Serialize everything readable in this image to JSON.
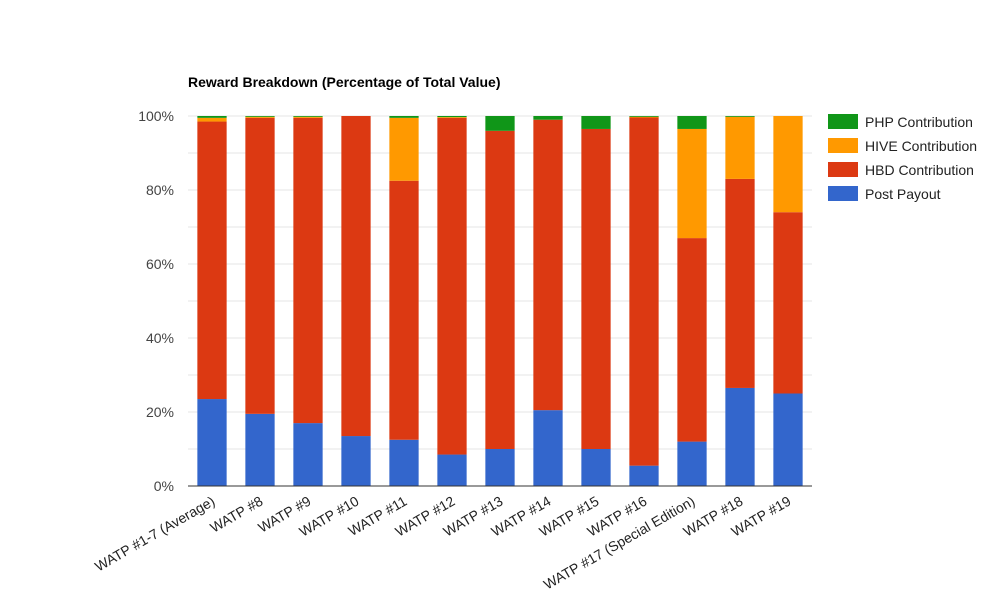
{
  "chart_data": {
    "type": "bar",
    "stacked": true,
    "title": "Reward Breakdown (Percentage of Total Value)",
    "xlabel": "",
    "ylabel": "",
    "ylim": [
      0,
      100
    ],
    "yticks": [
      "0%",
      "20%",
      "40%",
      "60%",
      "80%",
      "100%"
    ],
    "grid": true,
    "legend_position": "right",
    "categories": [
      "WATP #1-7 (Average)",
      "WATP #8",
      "WATP #9",
      "WATP #10",
      "WATP #11",
      "WATP #12",
      "WATP #13",
      "WATP #14",
      "WATP #15",
      "WATP #16",
      "WATP #17 (Special Edition)",
      "WATP #18",
      "WATP #19"
    ],
    "series": [
      {
        "name": "Post Payout",
        "color": "#3366cc",
        "values": [
          23.5,
          19.5,
          17,
          13.5,
          12.5,
          8.5,
          10,
          20.5,
          10,
          5.5,
          12,
          26.5,
          25
        ]
      },
      {
        "name": "HBD Contribution",
        "color": "#dc3912",
        "values": [
          75,
          80,
          82.5,
          86.5,
          70,
          91,
          86,
          78.5,
          86.5,
          94.2,
          55,
          56.5,
          49
        ]
      },
      {
        "name": "HIVE Contribution",
        "color": "#ff9900",
        "values": [
          1,
          0.3,
          0.3,
          0,
          17,
          0.2,
          0,
          0,
          0,
          0.1,
          29.5,
          16.8,
          26
        ]
      },
      {
        "name": "PHP Contribution",
        "color": "#109618",
        "values": [
          0.5,
          0.2,
          0.2,
          0,
          0.5,
          0.3,
          4,
          1,
          3.5,
          0.2,
          3.5,
          0.2,
          0
        ]
      }
    ],
    "legend_order": [
      "PHP Contribution",
      "HIVE Contribution",
      "HBD Contribution",
      "Post Payout"
    ]
  }
}
